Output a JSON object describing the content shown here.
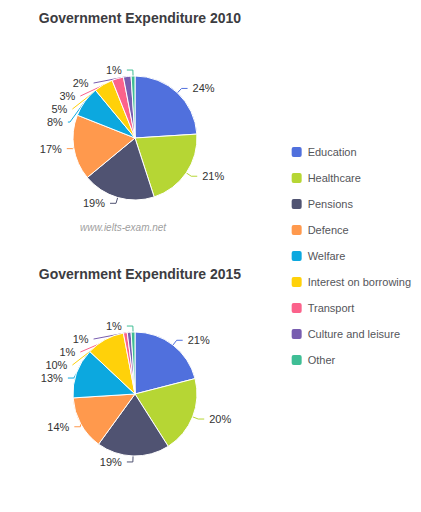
{
  "chart_data": [
    {
      "type": "pie",
      "title": "Government Expenditure 2010",
      "categories": [
        "Education",
        "Healthcare",
        "Pensions",
        "Defence",
        "Welfare",
        "Interest on borrowing",
        "Transport",
        "Culture and leisure",
        "Other"
      ],
      "values": [
        24,
        21,
        19,
        17,
        8,
        5,
        3,
        2,
        1
      ],
      "value_labels": [
        "24%",
        "21%",
        "19%",
        "17%",
        "8%",
        "5%",
        "3%",
        "2%",
        "1%"
      ],
      "data_labels": true,
      "legend": "right",
      "annotation": "www.ielts-exam.net"
    },
    {
      "type": "pie",
      "title": "Government Expenditure 2015",
      "categories": [
        "Education",
        "Healthcare",
        "Pensions",
        "Defence",
        "Welfare",
        "Interest on borrowing",
        "Transport",
        "Culture and leisure",
        "Other"
      ],
      "values": [
        21,
        20,
        19,
        14,
        13,
        10,
        1,
        1,
        1
      ],
      "value_labels": [
        "21%",
        "20%",
        "19%",
        "14%",
        "13%",
        "10%",
        "1%",
        "1%",
        "1%"
      ],
      "data_labels": true,
      "legend": "right"
    }
  ]
}
